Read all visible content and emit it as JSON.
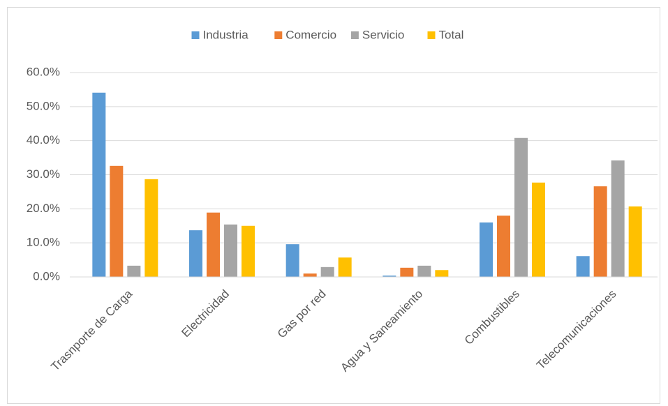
{
  "chart_data": {
    "type": "bar",
    "categories": [
      "Trasnporte de Carga",
      "Electricidad",
      "Gas por red",
      "Agua y Saneamiento",
      "Combustibles",
      "Telecomunicaciones"
    ],
    "series": [
      {
        "name": "Industria",
        "color": "#5b9bd5",
        "values": [
          54.1,
          13.7,
          9.6,
          0.4,
          16.0,
          6.1
        ]
      },
      {
        "name": "Comercio",
        "color": "#ed7d31",
        "values": [
          32.6,
          18.9,
          1.0,
          2.7,
          18.0,
          26.6
        ]
      },
      {
        "name": "Servicio",
        "color": "#a5a5a5",
        "values": [
          3.3,
          15.4,
          2.9,
          3.3,
          40.8,
          34.2
        ]
      },
      {
        "name": "Total",
        "color": "#ffc000",
        "values": [
          28.7,
          15.0,
          5.7,
          2.0,
          27.7,
          20.7
        ]
      }
    ],
    "ylim": [
      0,
      60
    ],
    "yticks": [
      {
        "value": 0,
        "label": "0.0%"
      },
      {
        "value": 10,
        "label": "10.0%"
      },
      {
        "value": 20,
        "label": "20.0%"
      },
      {
        "value": 30,
        "label": "30.0%"
      },
      {
        "value": 40,
        "label": "40.0%"
      },
      {
        "value": 50,
        "label": "50.0%"
      },
      {
        "value": 60,
        "label": "60.0%"
      }
    ],
    "grid": true,
    "legend": "top"
  }
}
